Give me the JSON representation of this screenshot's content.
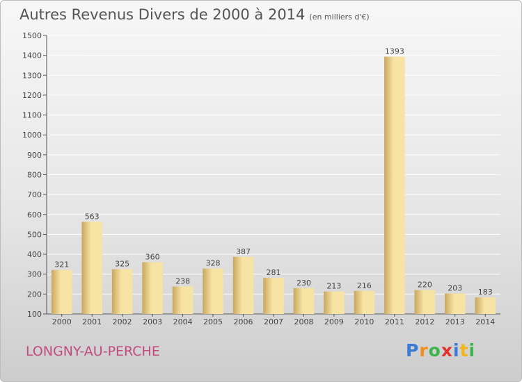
{
  "header": {
    "title": "Autres Revenus Divers de 2000 à 2014",
    "unit": "(en milliers d'€)"
  },
  "footer": {
    "commune": "LONGNY-AU-PERCHE",
    "logo": {
      "letters": [
        {
          "ch": "P",
          "color": "#3a7bd5"
        },
        {
          "ch": "r",
          "color": "#f28c1a"
        },
        {
          "ch": "o",
          "color": "#3cb64a"
        },
        {
          "ch": "x",
          "color": "#e2332f"
        },
        {
          "ch": "i",
          "color": "#3a7bd5"
        },
        {
          "ch": "t",
          "color": "#f2b51a"
        },
        {
          "ch": "i",
          "color": "#3cb64a"
        }
      ]
    }
  },
  "chart_data": {
    "type": "bar",
    "title": "Autres Revenus Divers de 2000 à 2014",
    "subtitle": "(en milliers d'€)",
    "xlabel": "",
    "ylabel": "",
    "categories": [
      "2000",
      "2001",
      "2002",
      "2003",
      "2004",
      "2005",
      "2006",
      "2007",
      "2008",
      "2009",
      "2010",
      "2011",
      "2012",
      "2013",
      "2014"
    ],
    "values": [
      321,
      563,
      325,
      360,
      238,
      328,
      387,
      281,
      230,
      213,
      216,
      1393,
      220,
      203,
      183
    ],
    "ylim": [
      100,
      1500
    ],
    "yticks": [
      100,
      200,
      300,
      400,
      500,
      600,
      700,
      800,
      900,
      1000,
      1100,
      1200,
      1300,
      1400,
      1500
    ],
    "grid": true,
    "legend": "none",
    "colors": {
      "bar_light": "#f7e3a3",
      "bar_dark": "#c9a75f",
      "grid": "#ffffff",
      "axis": "#555555"
    }
  }
}
